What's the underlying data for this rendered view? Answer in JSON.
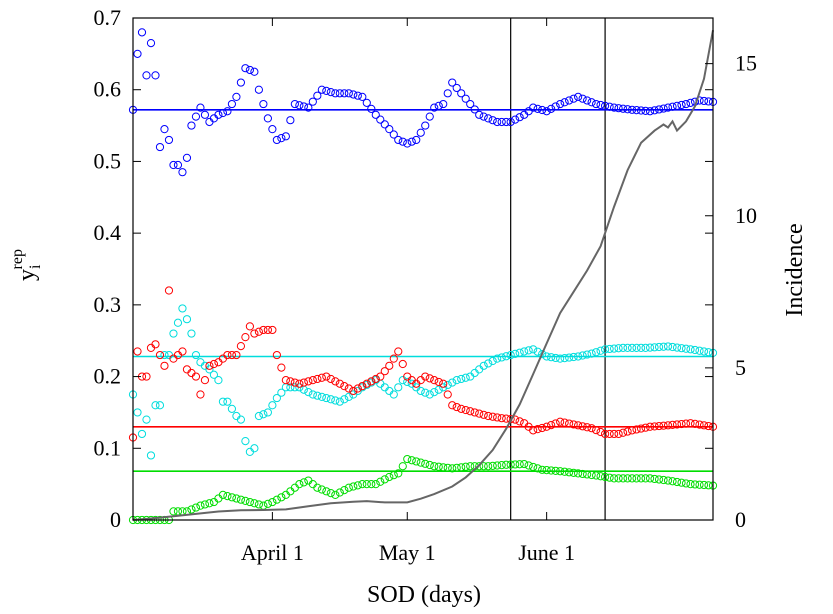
{
  "chart_data": {
    "type": "scatter",
    "xlabel": "SOD (days)",
    "ylabel": "y",
    "ylabel_sub": "i",
    "ylabel_sup": "rep",
    "y2label": "Incidence",
    "x_unit": "day index (day 1 = March 1)",
    "xlim": [
      1,
      130
    ],
    "ylim": [
      0,
      0.7
    ],
    "y2lim": [
      0,
      16.5
    ],
    "x_ticks": [
      {
        "x": 32,
        "label": "April 1"
      },
      {
        "x": 62,
        "label": "May 1"
      },
      {
        "x": 93,
        "label": "June 1"
      }
    ],
    "y_ticks": [
      {
        "y": 0,
        "label": "0"
      },
      {
        "y": 0.1,
        "label": "0.1"
      },
      {
        "y": 0.2,
        "label": "0.2"
      },
      {
        "y": 0.3,
        "label": "0.3"
      },
      {
        "y": 0.4,
        "label": "0.4"
      },
      {
        "y": 0.5,
        "label": "0.5"
      },
      {
        "y": 0.6,
        "label": "0.6"
      },
      {
        "y": 0.7,
        "label": "0.7"
      }
    ],
    "y2_ticks": [
      {
        "y": 0,
        "label": "0"
      },
      {
        "y": 5,
        "label": "5"
      },
      {
        "y": 10,
        "label": "10"
      },
      {
        "y": 15,
        "label": "15"
      }
    ],
    "vlines": [
      85,
      106
    ],
    "grid": false,
    "series": [
      {
        "color": "#0000ff",
        "mean": 0.572,
        "anchors": [
          [
            1,
            0.572
          ],
          [
            2,
            0.65
          ],
          [
            3,
            0.68
          ],
          [
            4,
            0.62
          ],
          [
            5,
            0.665
          ],
          [
            6,
            0.62
          ],
          [
            7,
            0.52
          ],
          [
            8,
            0.545
          ],
          [
            9,
            0.53
          ],
          [
            10,
            0.495
          ],
          [
            11,
            0.495
          ],
          [
            12,
            0.485
          ],
          [
            13,
            0.505
          ],
          [
            14,
            0.55
          ],
          [
            16,
            0.575
          ],
          [
            18,
            0.555
          ],
          [
            20,
            0.565
          ],
          [
            22,
            0.57
          ],
          [
            24,
            0.59
          ],
          [
            26,
            0.63
          ],
          [
            28,
            0.625
          ],
          [
            29,
            0.6
          ],
          [
            31,
            0.56
          ],
          [
            33,
            0.53
          ],
          [
            35,
            0.535
          ],
          [
            37,
            0.58
          ],
          [
            40,
            0.575
          ],
          [
            43,
            0.6
          ],
          [
            46,
            0.595
          ],
          [
            49,
            0.595
          ],
          [
            52,
            0.59
          ],
          [
            55,
            0.565
          ],
          [
            58,
            0.545
          ],
          [
            60,
            0.53
          ],
          [
            62,
            0.525
          ],
          [
            64,
            0.53
          ],
          [
            66,
            0.55
          ],
          [
            68,
            0.575
          ],
          [
            70,
            0.58
          ],
          [
            72,
            0.61
          ],
          [
            74,
            0.595
          ],
          [
            76,
            0.58
          ],
          [
            78,
            0.565
          ],
          [
            80,
            0.56
          ],
          [
            82,
            0.555
          ],
          [
            85,
            0.555
          ],
          [
            88,
            0.565
          ],
          [
            90,
            0.575
          ],
          [
            93,
            0.57
          ],
          [
            96,
            0.58
          ],
          [
            100,
            0.59
          ],
          [
            104,
            0.58
          ],
          [
            108,
            0.575
          ],
          [
            112,
            0.572
          ],
          [
            116,
            0.57
          ],
          [
            120,
            0.575
          ],
          [
            124,
            0.58
          ],
          [
            127,
            0.585
          ],
          [
            130,
            0.583
          ]
        ]
      },
      {
        "color": "#00dddd",
        "mean": 0.228,
        "anchors": [
          [
            1,
            0.175
          ],
          [
            2,
            0.15
          ],
          [
            3,
            0.12
          ],
          [
            4,
            0.14
          ],
          [
            5,
            0.09
          ],
          [
            6,
            0.16
          ],
          [
            7,
            0.16
          ],
          [
            8,
            0.23
          ],
          [
            9,
            0.23
          ],
          [
            10,
            0.26
          ],
          [
            11,
            0.275
          ],
          [
            12,
            0.295
          ],
          [
            13,
            0.28
          ],
          [
            14,
            0.26
          ],
          [
            15,
            0.23
          ],
          [
            16,
            0.22
          ],
          [
            18,
            0.21
          ],
          [
            20,
            0.195
          ],
          [
            21,
            0.165
          ],
          [
            22,
            0.165
          ],
          [
            24,
            0.145
          ],
          [
            25,
            0.14
          ],
          [
            26,
            0.11
          ],
          [
            27,
            0.095
          ],
          [
            28,
            0.1
          ],
          [
            29,
            0.145
          ],
          [
            31,
            0.15
          ],
          [
            33,
            0.17
          ],
          [
            35,
            0.185
          ],
          [
            38,
            0.185
          ],
          [
            41,
            0.175
          ],
          [
            44,
            0.17
          ],
          [
            47,
            0.165
          ],
          [
            50,
            0.175
          ],
          [
            52,
            0.185
          ],
          [
            55,
            0.195
          ],
          [
            57,
            0.185
          ],
          [
            59,
            0.175
          ],
          [
            61,
            0.195
          ],
          [
            63,
            0.19
          ],
          [
            65,
            0.18
          ],
          [
            67,
            0.175
          ],
          [
            70,
            0.185
          ],
          [
            73,
            0.195
          ],
          [
            76,
            0.2
          ],
          [
            79,
            0.215
          ],
          [
            82,
            0.225
          ],
          [
            85,
            0.23
          ],
          [
            88,
            0.235
          ],
          [
            90,
            0.238
          ],
          [
            93,
            0.228
          ],
          [
            96,
            0.225
          ],
          [
            100,
            0.228
          ],
          [
            103,
            0.232
          ],
          [
            106,
            0.238
          ],
          [
            110,
            0.24
          ],
          [
            115,
            0.24
          ],
          [
            120,
            0.242
          ],
          [
            125,
            0.238
          ],
          [
            130,
            0.233
          ]
        ]
      },
      {
        "color": "#ff0000",
        "mean": 0.13,
        "anchors": [
          [
            1,
            0.115
          ],
          [
            2,
            0.235
          ],
          [
            3,
            0.2
          ],
          [
            4,
            0.2
          ],
          [
            5,
            0.24
          ],
          [
            6,
            0.245
          ],
          [
            8,
            0.215
          ],
          [
            9,
            0.32
          ],
          [
            10,
            0.225
          ],
          [
            11,
            0.23
          ],
          [
            12,
            0.235
          ],
          [
            13,
            0.21
          ],
          [
            14,
            0.205
          ],
          [
            15,
            0.2
          ],
          [
            16,
            0.175
          ],
          [
            18,
            0.215
          ],
          [
            20,
            0.22
          ],
          [
            22,
            0.23
          ],
          [
            24,
            0.23
          ],
          [
            26,
            0.255
          ],
          [
            27,
            0.27
          ],
          [
            28,
            0.26
          ],
          [
            30,
            0.265
          ],
          [
            32,
            0.265
          ],
          [
            33,
            0.23
          ],
          [
            35,
            0.195
          ],
          [
            38,
            0.19
          ],
          [
            41,
            0.195
          ],
          [
            44,
            0.2
          ],
          [
            47,
            0.19
          ],
          [
            50,
            0.18
          ],
          [
            53,
            0.19
          ],
          [
            56,
            0.2
          ],
          [
            58,
            0.215
          ],
          [
            60,
            0.235
          ],
          [
            62,
            0.2
          ],
          [
            64,
            0.19
          ],
          [
            66,
            0.2
          ],
          [
            68,
            0.195
          ],
          [
            70,
            0.19
          ],
          [
            72,
            0.16
          ],
          [
            74,
            0.155
          ],
          [
            77,
            0.15
          ],
          [
            80,
            0.145
          ],
          [
            83,
            0.142
          ],
          [
            86,
            0.14
          ],
          [
            88,
            0.135
          ],
          [
            90,
            0.125
          ],
          [
            93,
            0.13
          ],
          [
            96,
            0.137
          ],
          [
            100,
            0.132
          ],
          [
            103,
            0.128
          ],
          [
            106,
            0.12
          ],
          [
            109,
            0.12
          ],
          [
            112,
            0.125
          ],
          [
            116,
            0.13
          ],
          [
            120,
            0.132
          ],
          [
            125,
            0.135
          ],
          [
            130,
            0.13
          ]
        ]
      },
      {
        "color": "#00dd00",
        "mean": 0.068,
        "anchors": [
          [
            1,
            0.0
          ],
          [
            9,
            0.0
          ],
          [
            10,
            0.012
          ],
          [
            13,
            0.012
          ],
          [
            16,
            0.02
          ],
          [
            19,
            0.025
          ],
          [
            21,
            0.035
          ],
          [
            24,
            0.03
          ],
          [
            27,
            0.025
          ],
          [
            30,
            0.02
          ],
          [
            32,
            0.025
          ],
          [
            35,
            0.035
          ],
          [
            38,
            0.05
          ],
          [
            40,
            0.055
          ],
          [
            42,
            0.045
          ],
          [
            44,
            0.04
          ],
          [
            46,
            0.035
          ],
          [
            49,
            0.045
          ],
          [
            52,
            0.05
          ],
          [
            55,
            0.05
          ],
          [
            58,
            0.06
          ],
          [
            60,
            0.065
          ],
          [
            62,
            0.085
          ],
          [
            65,
            0.08
          ],
          [
            68,
            0.075
          ],
          [
            72,
            0.072
          ],
          [
            76,
            0.075
          ],
          [
            80,
            0.075
          ],
          [
            84,
            0.077
          ],
          [
            88,
            0.078
          ],
          [
            92,
            0.07
          ],
          [
            96,
            0.068
          ],
          [
            100,
            0.065
          ],
          [
            104,
            0.062
          ],
          [
            108,
            0.058
          ],
          [
            112,
            0.058
          ],
          [
            116,
            0.058
          ],
          [
            120,
            0.055
          ],
          [
            125,
            0.05
          ],
          [
            130,
            0.048
          ]
        ]
      }
    ],
    "incidence": {
      "color": "#666666",
      "points": [
        [
          1,
          0
        ],
        [
          5,
          0.05
        ],
        [
          10,
          0.12
        ],
        [
          15,
          0.2
        ],
        [
          20,
          0.28
        ],
        [
          25,
          0.32
        ],
        [
          30,
          0.33
        ],
        [
          35,
          0.35
        ],
        [
          40,
          0.45
        ],
        [
          45,
          0.55
        ],
        [
          50,
          0.6
        ],
        [
          53,
          0.62
        ],
        [
          57,
          0.58
        ],
        [
          62,
          0.58
        ],
        [
          65,
          0.7
        ],
        [
          68,
          0.85
        ],
        [
          72,
          1.1
        ],
        [
          75,
          1.4
        ],
        [
          78,
          1.8
        ],
        [
          81,
          2.3
        ],
        [
          84,
          3.0
        ],
        [
          87,
          3.8
        ],
        [
          90,
          4.8
        ],
        [
          93,
          5.8
        ],
        [
          96,
          6.8
        ],
        [
          99,
          7.5
        ],
        [
          102,
          8.2
        ],
        [
          105,
          9.0
        ],
        [
          108,
          10.3
        ],
        [
          111,
          11.5
        ],
        [
          114,
          12.4
        ],
        [
          117,
          12.8
        ],
        [
          119,
          13.0
        ],
        [
          120,
          12.9
        ],
        [
          121,
          13.1
        ],
        [
          122,
          12.8
        ],
        [
          124,
          13.1
        ],
        [
          126,
          13.6
        ],
        [
          128,
          14.5
        ],
        [
          130,
          16.1
        ]
      ]
    }
  }
}
